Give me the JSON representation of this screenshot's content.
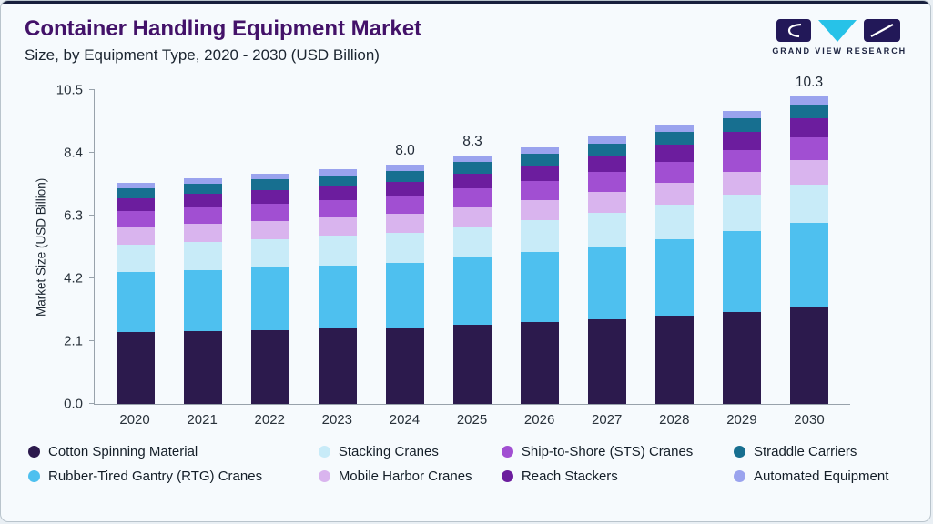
{
  "page": {
    "title": "Container Handling Equipment Market",
    "subtitle": "Size, by Equipment Type, 2020 - 2030 (USD Billion)",
    "brand": "GRAND VIEW RESEARCH"
  },
  "chart_data": {
    "type": "bar",
    "stacked": true,
    "title": "Container Handling Equipment Market Size, by Equipment Type, 2020 - 2030 (USD Billion)",
    "xlabel": "",
    "ylabel": "Market Size (USD Billion)",
    "ylim": [
      0,
      10.5
    ],
    "yticks": [
      0.0,
      2.1,
      4.2,
      6.3,
      8.4,
      10.5
    ],
    "grid": false,
    "legend_position": "bottom",
    "categories": [
      "2020",
      "2021",
      "2022",
      "2023",
      "2024",
      "2025",
      "2026",
      "2027",
      "2028",
      "2029",
      "2030"
    ],
    "series": [
      {
        "name": "Cotton Spinning Material",
        "color": "#2c1a4d",
        "values": [
          2.4,
          2.44,
          2.48,
          2.52,
          2.56,
          2.64,
          2.73,
          2.83,
          2.95,
          3.08,
          3.22
        ]
      },
      {
        "name": "Rubber-Tired Gantry (RTG) Cranes",
        "color": "#4ec0ef",
        "values": [
          2.0,
          2.04,
          2.08,
          2.12,
          2.16,
          2.25,
          2.34,
          2.44,
          2.56,
          2.69,
          2.84
        ]
      },
      {
        "name": "Stacking Cranes",
        "color": "#c8ebf8",
        "values": [
          0.92,
          0.94,
          0.96,
          0.98,
          1.0,
          1.04,
          1.08,
          1.12,
          1.17,
          1.22,
          1.28
        ]
      },
      {
        "name": "Mobile Harbor Cranes",
        "color": "#d9b4ee",
        "values": [
          0.58,
          0.6,
          0.61,
          0.62,
          0.63,
          0.65,
          0.67,
          0.7,
          0.73,
          0.77,
          0.81
        ]
      },
      {
        "name": "Ship-to-Shore (STS) Cranes",
        "color": "#a14fd2",
        "values": [
          0.55,
          0.56,
          0.57,
          0.58,
          0.6,
          0.62,
          0.64,
          0.67,
          0.7,
          0.74,
          0.78
        ]
      },
      {
        "name": "Reach Stackers",
        "color": "#6c1d9e",
        "values": [
          0.44,
          0.45,
          0.46,
          0.47,
          0.48,
          0.5,
          0.52,
          0.54,
          0.57,
          0.6,
          0.63
        ]
      },
      {
        "name": "Straddle Carriers",
        "color": "#176f90",
        "values": [
          0.33,
          0.34,
          0.35,
          0.36,
          0.37,
          0.39,
          0.4,
          0.42,
          0.43,
          0.45,
          0.47
        ]
      },
      {
        "name": "Automated Equipment",
        "color": "#9aa3ee",
        "values": [
          0.18,
          0.18,
          0.19,
          0.2,
          0.2,
          0.21,
          0.22,
          0.23,
          0.24,
          0.25,
          0.27
        ]
      }
    ],
    "totals": [
      7.4,
      7.55,
      7.7,
      7.85,
      8.0,
      8.3,
      8.6,
      8.95,
      9.35,
      9.8,
      10.3
    ],
    "annotations": [
      {
        "category": "2024",
        "text": "8.0"
      },
      {
        "category": "2025",
        "text": "8.3"
      },
      {
        "category": "2030",
        "text": "10.3"
      }
    ]
  },
  "legend": {
    "rows": [
      [
        "Cotton Spinning Material",
        "Stacking Cranes",
        "Ship-to-Shore (STS) Cranes",
        "Straddle Carriers"
      ],
      [
        "Rubber-Tired Gantry (RTG) Cranes",
        "Mobile Harbor Cranes",
        "Reach Stackers",
        "Automated Equipment"
      ]
    ]
  }
}
